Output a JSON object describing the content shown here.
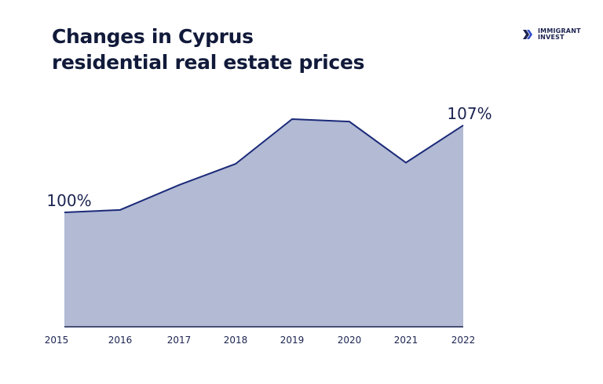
{
  "header": {
    "title_line1": "Changes in Cyprus",
    "title_line2": "residential real estate prices"
  },
  "logo": {
    "line1": "IMMIGRANT",
    "line2": "INVEST"
  },
  "chart_data": {
    "type": "area",
    "categories": [
      "2015",
      "2016",
      "2017",
      "2018",
      "2019",
      "2020",
      "2021",
      "2022"
    ],
    "series": [
      {
        "values": [
          100,
          100.2,
          102.2,
          103.9,
          107.5,
          107.3,
          104.0,
          107
        ]
      }
    ],
    "data_labels": [
      {
        "index": 0,
        "text": "100%"
      },
      {
        "index": 7,
        "text": "107%"
      }
    ],
    "ylim": [
      90.8,
      108
    ],
    "grid": false,
    "colors": {
      "line": "#1b2a78",
      "fill": "#b2bad4",
      "axis": "#1b2350",
      "text": "#1b2350"
    }
  }
}
